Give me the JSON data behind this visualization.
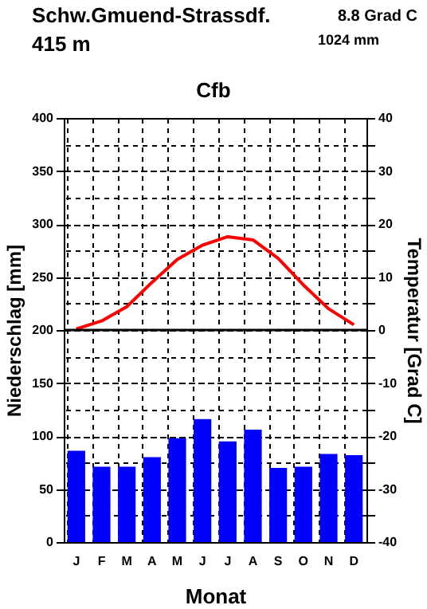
{
  "chart_data": {
    "type": "bar",
    "title": "Schw.Gmuend-Strassdf.",
    "subtitle": "415 m",
    "annotations": [
      "8.8 Grad C",
      "1024 mm",
      "Cfb"
    ],
    "xlabel": "Monat",
    "ylabel": "Niederschlag [mm]",
    "y2label": "Temperatur [Grad C]",
    "categories": [
      "J",
      "F",
      "M",
      "A",
      "M",
      "J",
      "J",
      "A",
      "S",
      "O",
      "N",
      "D"
    ],
    "series": [
      {
        "color": "#0000ff",
        "values": [
          86,
          71,
          71,
          80,
          98,
          116,
          95,
          106,
          70,
          71,
          83,
          82
        ]
      },
      {
        "type": "line",
        "axis": "y2",
        "color": "#ff0000",
        "values": [
          0.2,
          1.7,
          4.4,
          9.0,
          13.3,
          16.0,
          17.6,
          17.0,
          13.5,
          8.5,
          4.0,
          1.0
        ]
      }
    ],
    "ylim": [
      0,
      400
    ],
    "yticks": [
      0,
      50,
      100,
      150,
      200,
      250,
      300,
      350,
      400
    ],
    "y2lim": [
      -40,
      40
    ],
    "y2ticks": [
      -40,
      {
        "value": -35,
        "label": null
      },
      -30,
      {
        "value": -25,
        "label": null
      },
      -20,
      {
        "value": -15,
        "label": null
      },
      -10,
      {
        "value": -5,
        "label": null
      },
      0,
      {
        "value": 5,
        "label": null
      },
      10,
      {
        "value": 15,
        "label": null
      },
      20,
      {
        "value": 25,
        "label": null
      },
      30,
      {
        "value": 35,
        "label": null
      },
      40
    ],
    "ref_lines": [
      {
        "axis": "y2",
        "value": 0,
        "label": null,
        "color": "#000000",
        "line_style": "solid"
      }
    ],
    "grid": true
  }
}
